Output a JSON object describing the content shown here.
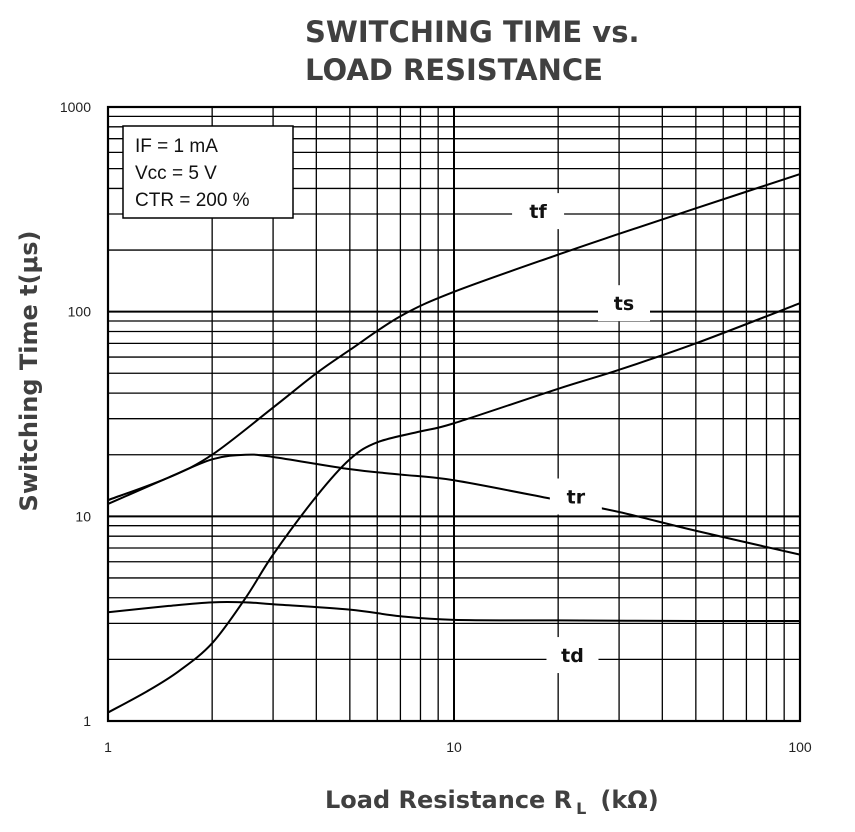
{
  "chart_data": {
    "type": "line",
    "title_lines": [
      "SWITCHING TIME vs.",
      "LOAD RESISTANCE"
    ],
    "xlabel": {
      "main": "Load Resistance R",
      "sub": "L",
      "unit": "(kΩ)"
    },
    "ylabel": "Switching Time  t(μs)",
    "x_scale": "log",
    "y_scale": "log",
    "xlim": [
      1,
      100
    ],
    "ylim": [
      1,
      1000
    ],
    "x_ticks": [
      {
        "value": 1,
        "label": "1"
      },
      {
        "value": 10,
        "label": "10"
      },
      {
        "value": 100,
        "label": "100"
      }
    ],
    "y_ticks": [
      {
        "value": 1,
        "label": "1"
      },
      {
        "value": 10,
        "label": "10"
      },
      {
        "value": 100,
        "label": "100"
      },
      {
        "value": 1000,
        "label": "1000"
      }
    ],
    "grid": true,
    "conditions": [
      "IF = 1 mA",
      "Vcc = 5 V",
      "CTR = 200 %"
    ],
    "series": [
      {
        "name": "tf",
        "label": "tf",
        "points": [
          [
            1,
            12
          ],
          [
            1.5,
            15.5
          ],
          [
            2,
            20
          ],
          [
            3,
            34
          ],
          [
            4,
            50
          ],
          [
            5,
            65
          ],
          [
            7,
            95
          ],
          [
            10,
            125
          ],
          [
            20,
            190
          ],
          [
            30,
            240
          ],
          [
            50,
            320
          ],
          [
            100,
            470
          ]
        ]
      },
      {
        "name": "ts",
        "label": "ts",
        "points": [
          [
            1,
            1.1
          ],
          [
            1.3,
            1.4
          ],
          [
            1.6,
            1.75
          ],
          [
            2,
            2.4
          ],
          [
            2.5,
            4
          ],
          [
            3,
            6.5
          ],
          [
            4,
            12.5
          ],
          [
            5,
            19
          ],
          [
            6,
            23
          ],
          [
            8,
            26
          ],
          [
            10,
            28.5
          ],
          [
            20,
            42
          ],
          [
            30,
            52
          ],
          [
            50,
            70
          ],
          [
            100,
            110
          ]
        ]
      },
      {
        "name": "tr",
        "label": "tr",
        "points": [
          [
            1,
            11.5
          ],
          [
            1.5,
            15.5
          ],
          [
            2,
            19
          ],
          [
            2.5,
            20
          ],
          [
            3,
            19.5
          ],
          [
            5,
            17
          ],
          [
            7,
            16
          ],
          [
            10,
            15
          ],
          [
            20,
            12
          ],
          [
            30,
            10.5
          ],
          [
            50,
            8.5
          ],
          [
            100,
            6.5
          ]
        ]
      },
      {
        "name": "td",
        "label": "td",
        "points": [
          [
            1,
            3.4
          ],
          [
            1.5,
            3.65
          ],
          [
            2,
            3.8
          ],
          [
            2.5,
            3.8
          ],
          [
            3,
            3.72
          ],
          [
            5,
            3.5
          ],
          [
            7,
            3.25
          ],
          [
            10,
            3.12
          ],
          [
            20,
            3.1
          ],
          [
            50,
            3.08
          ],
          [
            100,
            3.08
          ]
        ]
      }
    ]
  }
}
